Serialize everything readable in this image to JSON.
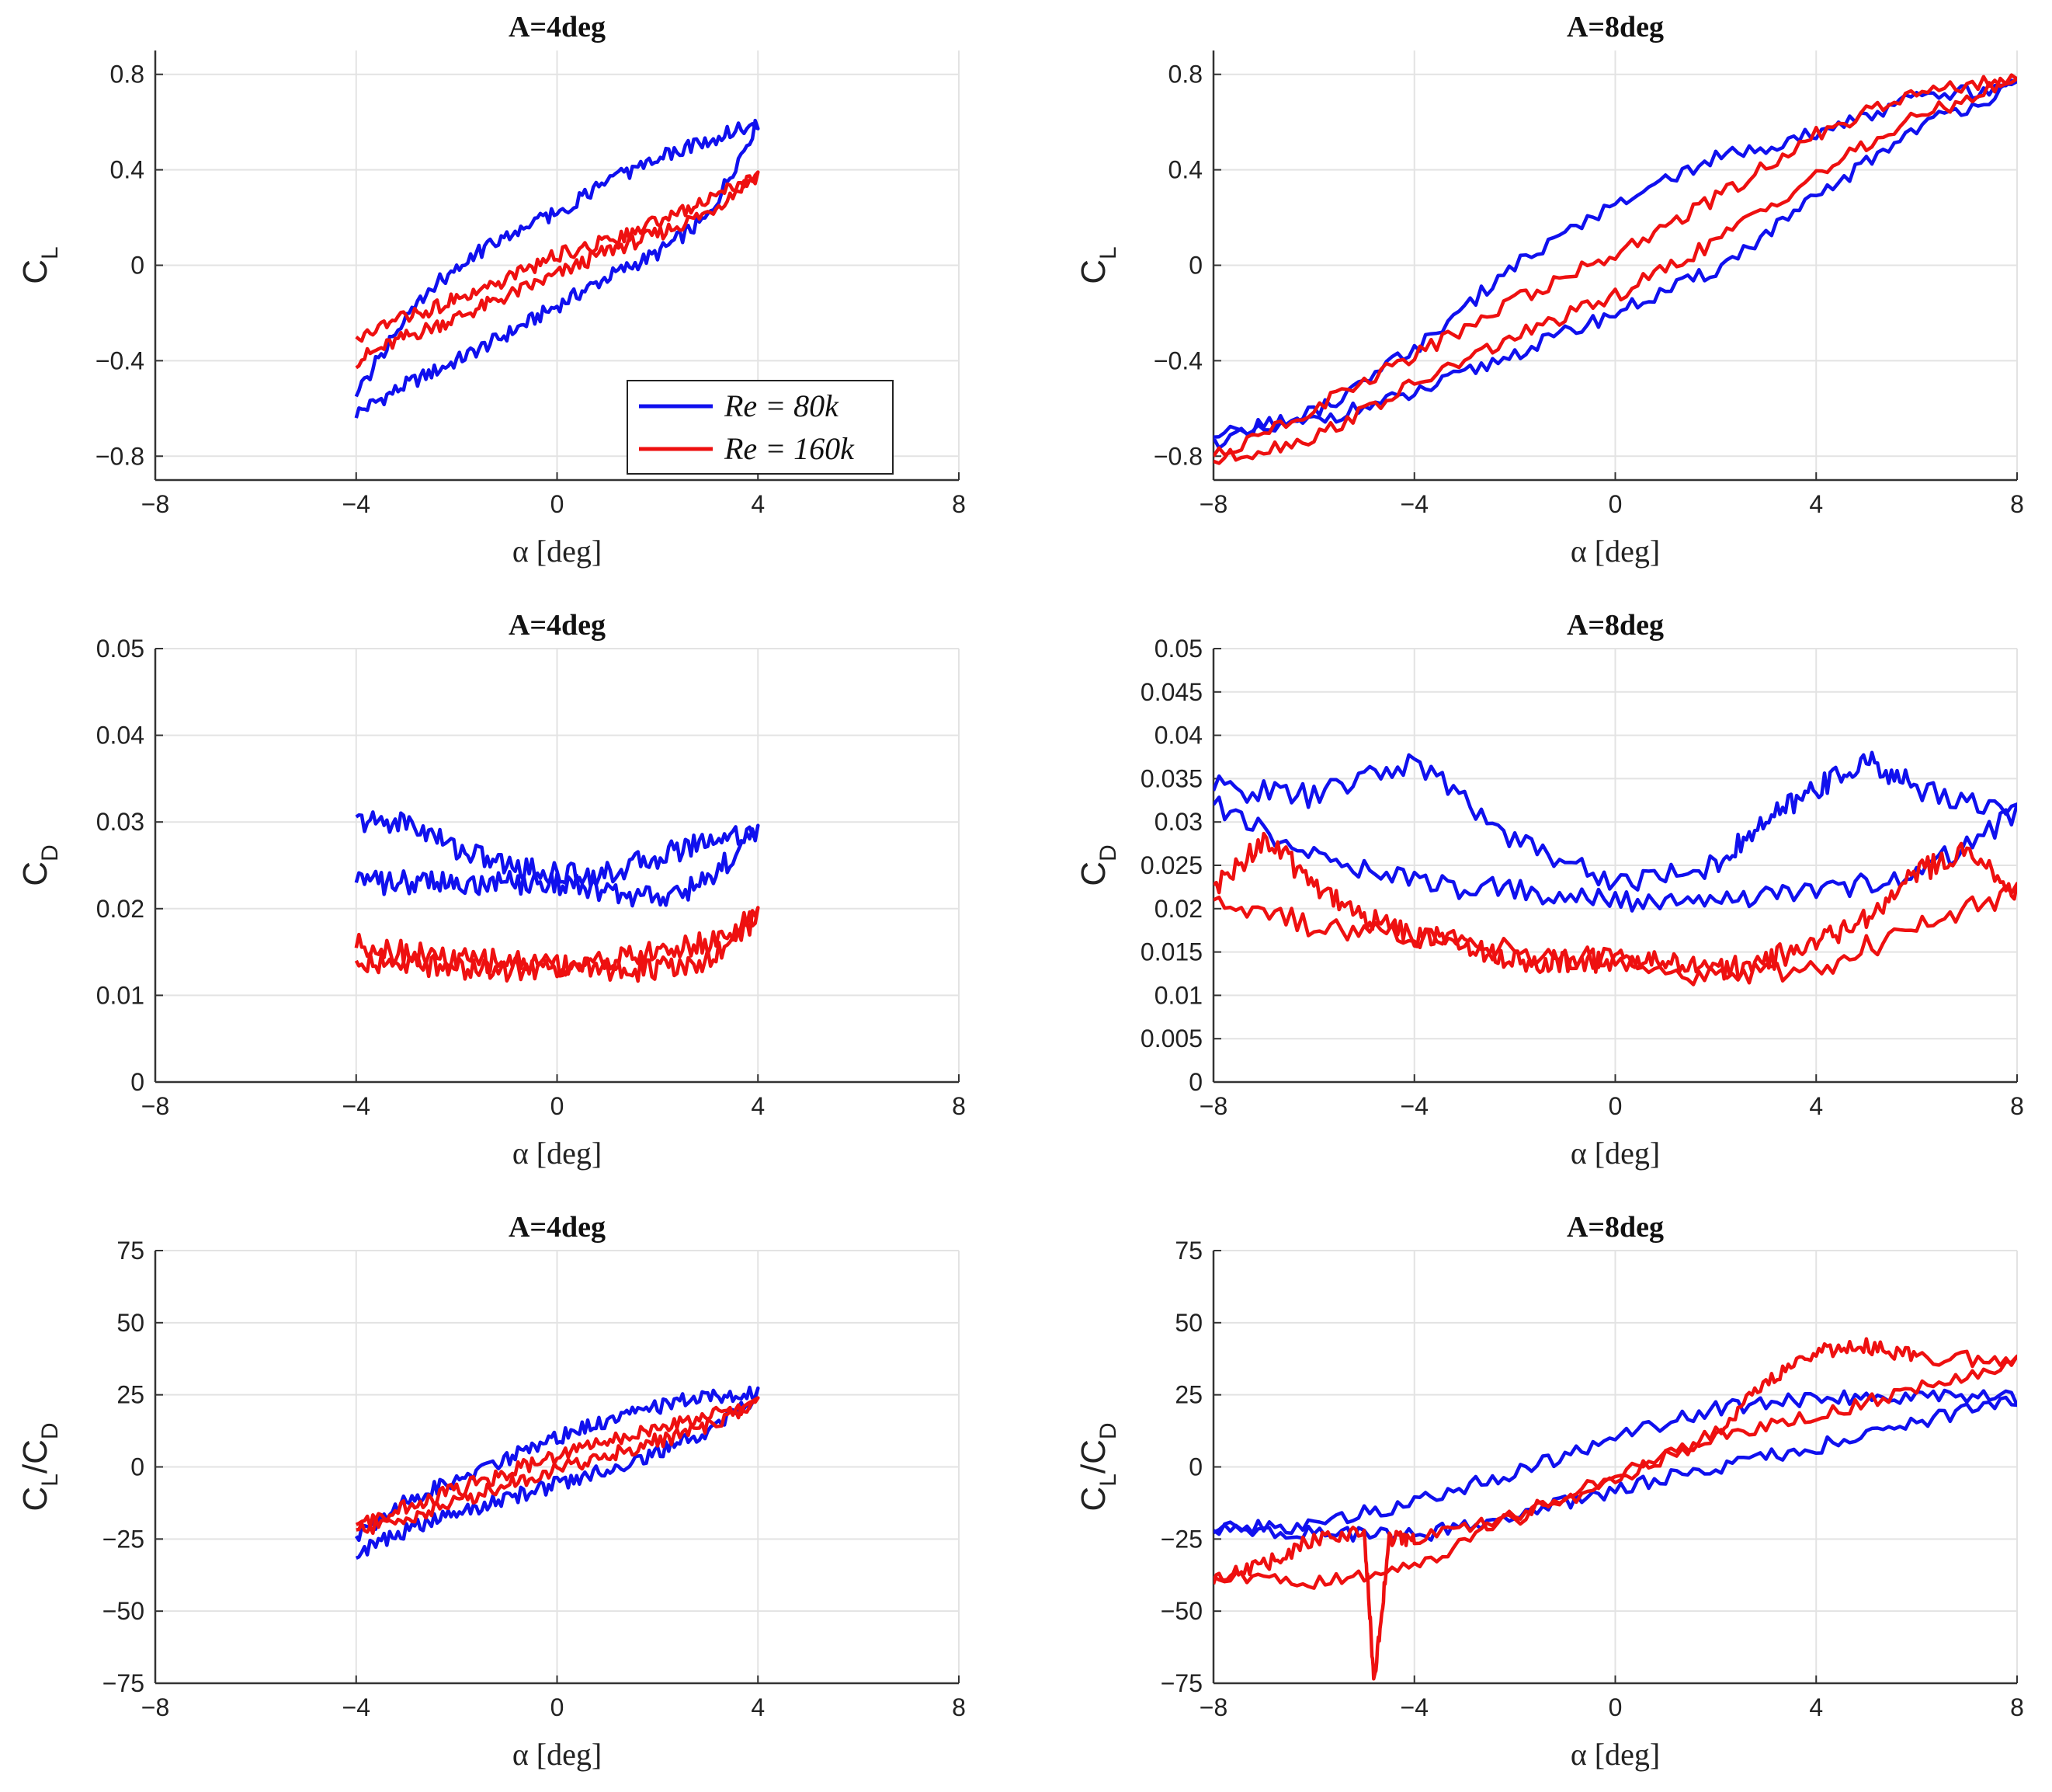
{
  "figure": {
    "colors": {
      "re80k": "#1010ee",
      "re160k": "#ee1010",
      "grid": "#e3e3e3",
      "axis": "#333333"
    },
    "legend": {
      "items": [
        "Re = 80k",
        "Re = 160k"
      ],
      "placement": "bottom-right of top-left panel"
    }
  },
  "chart_data": [
    {
      "type": "line",
      "title": "A=4deg",
      "xlabel": "α [deg]",
      "ylabel": "C_L",
      "xlim": [
        -8,
        8
      ],
      "ylim": [
        -0.9,
        0.9
      ],
      "xticks": [
        "−8",
        "−4",
        "0",
        "4",
        "8"
      ],
      "yticks": [
        "−0.8",
        "−0.4",
        "0",
        "0.4",
        "0.8"
      ],
      "series": [
        {
          "name": "Re = 80k",
          "x": [
            -4,
            -3,
            -2,
            -1,
            0,
            1,
            2,
            3,
            4,
            3,
            2,
            1,
            0,
            -1,
            -2,
            -3,
            -4
          ],
          "values": [
            -0.62,
            -0.5,
            -0.4,
            -0.29,
            -0.17,
            -0.05,
            0.05,
            0.2,
            0.6,
            0.52,
            0.45,
            0.35,
            0.22,
            0.12,
            0.0,
            -0.2,
            -0.55
          ]
        },
        {
          "name": "Re = 160k",
          "x": [
            -4,
            -3,
            -2,
            -1,
            0,
            1,
            2,
            3,
            4,
            3,
            2,
            1,
            0,
            -1,
            -2,
            -3,
            -4
          ],
          "values": [
            -0.4,
            -0.3,
            -0.22,
            -0.13,
            -0.04,
            0.06,
            0.13,
            0.22,
            0.38,
            0.27,
            0.18,
            0.1,
            0.04,
            -0.06,
            -0.14,
            -0.22,
            -0.3
          ]
        }
      ]
    },
    {
      "type": "line",
      "title": "A=8deg",
      "xlabel": "α [deg]",
      "ylabel": "C_L",
      "xlim": [
        -8,
        8
      ],
      "ylim": [
        -0.9,
        0.9
      ],
      "xticks": [
        "−8",
        "−4",
        "0",
        "4",
        "8"
      ],
      "yticks": [
        "−0.8",
        "−0.4",
        "0",
        "0.4",
        "0.8"
      ],
      "series": [
        {
          "name": "Re = 80k",
          "x": [
            -8,
            -6,
            -4,
            -2,
            0,
            2,
            4,
            6,
            8,
            6,
            4,
            2,
            0,
            -2,
            -4,
            -6,
            -8
          ],
          "values": [
            -0.74,
            -0.65,
            -0.54,
            -0.37,
            -0.2,
            -0.02,
            0.28,
            0.58,
            0.75,
            0.7,
            0.55,
            0.45,
            0.25,
            0.0,
            -0.35,
            -0.62,
            -0.72
          ]
        },
        {
          "name": "Re = 160k",
          "x": [
            -8,
            -6,
            -4,
            -2,
            0,
            2,
            4,
            6,
            8,
            6,
            4,
            2,
            0,
            -2,
            -4,
            -6,
            -8
          ],
          "values": [
            -0.82,
            -0.72,
            -0.5,
            -0.3,
            -0.13,
            0.1,
            0.38,
            0.62,
            0.78,
            0.73,
            0.55,
            0.28,
            0.05,
            -0.15,
            -0.38,
            -0.6,
            -0.8
          ]
        }
      ]
    },
    {
      "type": "line",
      "title": "A=4deg",
      "xlabel": "α [deg]",
      "ylabel": "C_D",
      "xlim": [
        -8,
        8
      ],
      "ylim": [
        0,
        0.05
      ],
      "xticks": [
        "−8",
        "−4",
        "0",
        "4",
        "8"
      ],
      "yticks": [
        "0",
        "0.01",
        "0.02",
        "0.03",
        "0.04",
        "0.05"
      ],
      "series": [
        {
          "name": "Re = 80k",
          "x": [
            -4,
            -3,
            -2,
            -1,
            0,
            1,
            2,
            3,
            4,
            3,
            2,
            1,
            0,
            -1,
            -2,
            -3,
            -4
          ],
          "values": [
            0.03,
            0.03,
            0.027,
            0.025,
            0.024,
            0.024,
            0.026,
            0.028,
            0.029,
            0.023,
            0.021,
            0.022,
            0.023,
            0.023,
            0.023,
            0.023,
            0.023
          ]
        },
        {
          "name": "Re = 160k",
          "x": [
            -4,
            -3,
            -2,
            -1,
            0,
            1,
            2,
            3,
            4,
            3,
            2,
            1,
            0,
            -1,
            -2,
            -3,
            -4
          ],
          "values": [
            0.016,
            0.015,
            0.014,
            0.014,
            0.0135,
            0.014,
            0.015,
            0.016,
            0.019,
            0.014,
            0.013,
            0.013,
            0.0135,
            0.013,
            0.013,
            0.014,
            0.014
          ]
        }
      ]
    },
    {
      "type": "line",
      "title": "A=8deg",
      "xlabel": "α [deg]",
      "ylabel": "C_D",
      "xlim": [
        -8,
        8
      ],
      "ylim": [
        0,
        0.05
      ],
      "xticks": [
        "−8",
        "−4",
        "0",
        "4",
        "8"
      ],
      "yticks": [
        "0",
        "0.005",
        "0.01",
        "0.015",
        "0.02",
        "0.025",
        "0.03",
        "0.035",
        "0.04",
        "0.045",
        "0.05"
      ],
      "series": [
        {
          "name": "Re = 80k",
          "x": [
            -8,
            -6,
            -4,
            -2,
            0,
            2,
            3,
            4,
            5,
            6,
            8,
            6,
            4,
            2,
            0,
            -2,
            -4,
            -6,
            -8
          ],
          "values": [
            0.034,
            0.033,
            0.037,
            0.028,
            0.023,
            0.025,
            0.03,
            0.034,
            0.037,
            0.034,
            0.031,
            0.024,
            0.022,
            0.021,
            0.021,
            0.022,
            0.023,
            0.026,
            0.032
          ]
        },
        {
          "name": "Re = 160k",
          "x": [
            -8,
            -7,
            -6,
            -5,
            -4,
            -3,
            -2,
            -1,
            0,
            1,
            2,
            3,
            4,
            5,
            6,
            7,
            8,
            6,
            4,
            2,
            0,
            -2,
            -4,
            -6,
            -8
          ],
          "values": [
            0.022,
            0.028,
            0.023,
            0.019,
            0.017,
            0.016,
            0.014,
            0.014,
            0.014,
            0.014,
            0.013,
            0.014,
            0.016,
            0.019,
            0.024,
            0.027,
            0.022,
            0.018,
            0.013,
            0.012,
            0.014,
            0.015,
            0.017,
            0.018,
            0.021
          ]
        }
      ]
    },
    {
      "type": "line",
      "title": "A=4deg",
      "xlabel": "α [deg]",
      "ylabel": "C_L/C_D",
      "xlim": [
        -8,
        8
      ],
      "ylim": [
        -75,
        75
      ],
      "xticks": [
        "−8",
        "−4",
        "0",
        "4",
        "8"
      ],
      "yticks": [
        "−75",
        "−50",
        "−25",
        "0",
        "25",
        "50",
        "75"
      ],
      "series": [
        {
          "name": "Re = 80k",
          "x": [
            -4,
            -3,
            -2,
            -1,
            0,
            1,
            2,
            3,
            4,
            3,
            2,
            1,
            0,
            -1,
            -2,
            -3,
            -4
          ],
          "values": [
            -30,
            -22,
            -16,
            -11,
            -6,
            -1,
            5,
            12,
            25,
            25,
            21,
            16,
            10,
            3,
            -4,
            -12,
            -24
          ]
        },
        {
          "name": "Re = 160k",
          "x": [
            -4,
            -3,
            -2,
            -1,
            0,
            1,
            2,
            3,
            4,
            3,
            2,
            1,
            0,
            -1,
            -2,
            -3,
            -4
          ],
          "values": [
            -22,
            -18,
            -12,
            -6,
            -1,
            4,
            9,
            14,
            22,
            18,
            14,
            9,
            4,
            -2,
            -8,
            -14,
            -20
          ]
        }
      ]
    },
    {
      "type": "line",
      "title": "A=8deg",
      "xlabel": "α [deg]",
      "ylabel": "C_L/C_D",
      "xlim": [
        -8,
        8
      ],
      "ylim": [
        -75,
        75
      ],
      "xticks": [
        "−8",
        "−4",
        "0",
        "4",
        "8"
      ],
      "yticks": [
        "−75",
        "−50",
        "−25",
        "0",
        "25",
        "50",
        "75"
      ],
      "series": [
        {
          "name": "Re = 80k",
          "x": [
            -8,
            -6,
            -4,
            -2,
            0,
            2,
            4,
            6,
            8,
            6,
            4,
            2,
            0,
            -2,
            -4,
            -6,
            -8
          ],
          "values": [
            -22,
            -23,
            -24,
            -17,
            -8,
            0,
            7,
            15,
            24,
            24,
            24,
            20,
            10,
            -2,
            -12,
            -20,
            -22
          ]
        },
        {
          "name": "Re = 160k",
          "x": [
            -8,
            -7,
            -6,
            -5,
            -4.8,
            -4.5,
            -4,
            -2,
            0,
            2,
            3,
            4,
            5,
            6,
            8,
            6,
            4,
            2,
            0,
            -2,
            -4,
            -6,
            -8
          ],
          "values": [
            -38,
            -34,
            -25,
            -22,
            -75,
            -25,
            -25,
            -18,
            -5,
            12,
            30,
            40,
            42,
            38,
            37,
            27,
            18,
            10,
            -3,
            -17,
            -35,
            -40,
            -38
          ]
        }
      ]
    }
  ]
}
